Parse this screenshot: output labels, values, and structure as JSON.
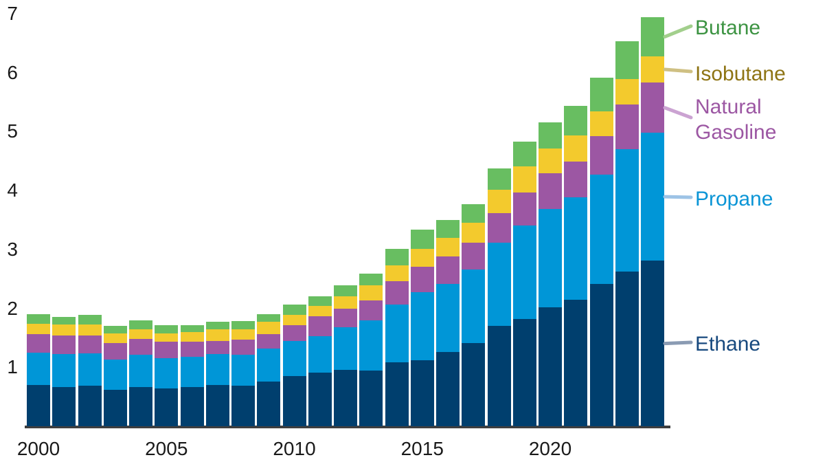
{
  "chart_data": {
    "type": "bar",
    "stacked": true,
    "title": "",
    "x": [
      2000,
      2001,
      2002,
      2003,
      2004,
      2005,
      2006,
      2007,
      2008,
      2009,
      2010,
      2011,
      2012,
      2013,
      2014,
      2015,
      2016,
      2017,
      2018,
      2019,
      2020,
      2021,
      2022,
      2023,
      2024
    ],
    "x_tick_labels": [
      "2000",
      "2005",
      "2010",
      "2015",
      "2020"
    ],
    "x_tick_years": [
      2000,
      2005,
      2010,
      2015,
      2020
    ],
    "y_ticks": [
      1,
      2,
      3,
      4,
      5,
      6,
      7
    ],
    "ylim": [
      0,
      7
    ],
    "grid": false,
    "legend_position": "right",
    "series": [
      {
        "name": "Ethane",
        "color": "#003F6E",
        "label_color": "#17497E",
        "connector_color": "#8A9BB3",
        "values": [
          0.7,
          0.67,
          0.69,
          0.62,
          0.66,
          0.64,
          0.67,
          0.7,
          0.69,
          0.76,
          0.85,
          0.91,
          0.96,
          0.95,
          1.09,
          1.12,
          1.26,
          1.41,
          1.7,
          1.82,
          2.02,
          2.15,
          2.42,
          2.62,
          2.81
        ]
      },
      {
        "name": "Propane",
        "color": "#0096D7",
        "label_color": "#0B95D6",
        "connector_color": "#9DC3E6",
        "values": [
          0.55,
          0.55,
          0.55,
          0.51,
          0.55,
          0.51,
          0.51,
          0.52,
          0.52,
          0.56,
          0.6,
          0.62,
          0.72,
          0.85,
          0.97,
          1.15,
          1.16,
          1.25,
          1.42,
          1.59,
          1.67,
          1.74,
          1.85,
          2.08,
          2.17
        ]
      },
      {
        "name": "Natural Gasoline",
        "color": "#9C57A3",
        "label_color": "#9C57A3",
        "connector_color": "#CBA3D2",
        "values": [
          0.31,
          0.32,
          0.3,
          0.28,
          0.27,
          0.28,
          0.25,
          0.23,
          0.26,
          0.24,
          0.27,
          0.34,
          0.31,
          0.34,
          0.4,
          0.44,
          0.46,
          0.45,
          0.5,
          0.56,
          0.6,
          0.6,
          0.65,
          0.76,
          0.85
        ]
      },
      {
        "name": "Isobutane",
        "color": "#F3CA2D",
        "label_color": "#8E7414",
        "connector_color": "#CFC083",
        "values": [
          0.18,
          0.19,
          0.19,
          0.17,
          0.17,
          0.15,
          0.17,
          0.2,
          0.17,
          0.21,
          0.17,
          0.17,
          0.22,
          0.25,
          0.27,
          0.3,
          0.32,
          0.34,
          0.39,
          0.44,
          0.42,
          0.44,
          0.42,
          0.43,
          0.45
        ]
      },
      {
        "name": "Butane",
        "color": "#68BE61",
        "label_color": "#3C9342",
        "connector_color": "#A2CF8C",
        "values": [
          0.16,
          0.13,
          0.16,
          0.12,
          0.15,
          0.13,
          0.12,
          0.12,
          0.14,
          0.13,
          0.18,
          0.17,
          0.18,
          0.2,
          0.28,
          0.33,
          0.3,
          0.32,
          0.37,
          0.42,
          0.45,
          0.51,
          0.58,
          0.64,
          0.66
        ]
      }
    ]
  },
  "legend": {
    "order_top_to_bottom": [
      "Butane",
      "Isobutane",
      "Natural Gasoline",
      "Propane",
      "Ethane"
    ]
  }
}
